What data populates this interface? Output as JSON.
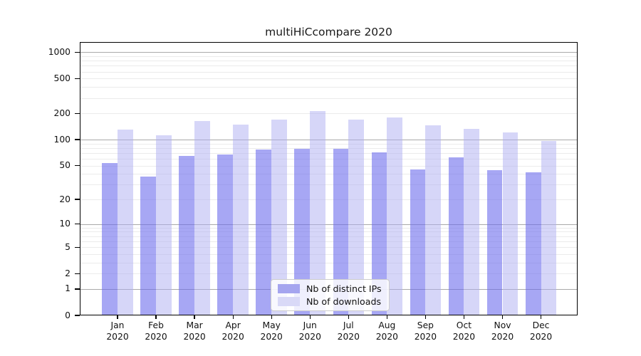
{
  "chart_data": {
    "type": "bar",
    "title": "multiHiCcompare 2020",
    "categories": [
      "Jan 2020",
      "Feb 2020",
      "Mar 2020",
      "Apr 2020",
      "May 2020",
      "Jun 2020",
      "Jul 2020",
      "Aug 2020",
      "Sep 2020",
      "Oct 2020",
      "Nov 2020",
      "Dec 2020"
    ],
    "series": [
      {
        "name": "Nb of distinct IPs",
        "values": [
          54,
          37,
          65,
          67,
          77,
          78,
          79,
          71,
          45,
          63,
          44,
          42
        ]
      },
      {
        "name": "Nb of downloads",
        "values": [
          130,
          112,
          163,
          150,
          170,
          212,
          170,
          179,
          147,
          134,
          120,
          96
        ]
      }
    ],
    "xlabel": "",
    "ylabel": "",
    "yscale": "log1p",
    "yticks": [
      1000,
      500,
      200,
      100,
      50,
      20,
      10,
      5,
      2,
      1,
      0
    ],
    "ylim": [
      0,
      1310
    ],
    "grid": true,
    "legend_position": "lower center"
  },
  "colors": {
    "ips_fill": "rgba(108,108,237,0.6)",
    "downloads_fill": "rgba(173,173,242,0.5)",
    "ips_swatch": "#a5a5ef",
    "downloads_swatch": "#d9d9f7",
    "grid_major": "#a9a9a9",
    "grid_minor": "#ebebeb"
  }
}
